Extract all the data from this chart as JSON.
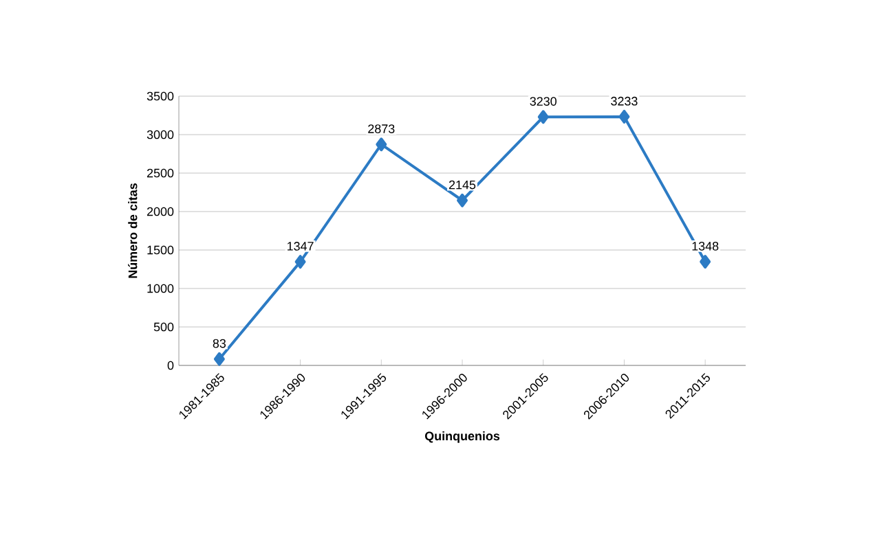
{
  "chart_data": {
    "type": "line",
    "xlabel": "Quinquenios",
    "ylabel": "Número de citas",
    "categories": [
      "1981-1985",
      "1986-1990",
      "1991-1995",
      "1996-2000",
      "2001-2005",
      "2006-2010",
      "2011-2015"
    ],
    "values": [
      83,
      1347,
      2873,
      2145,
      3230,
      3233,
      1348
    ],
    "color": "#2c7bc4",
    "ylim": [
      0,
      3500
    ],
    "yticks": [
      0,
      500,
      1000,
      1500,
      2000,
      2500,
      3000,
      3500
    ],
    "grid": "y",
    "marker": "diamond",
    "line_style": "solid",
    "data_labels": true
  }
}
